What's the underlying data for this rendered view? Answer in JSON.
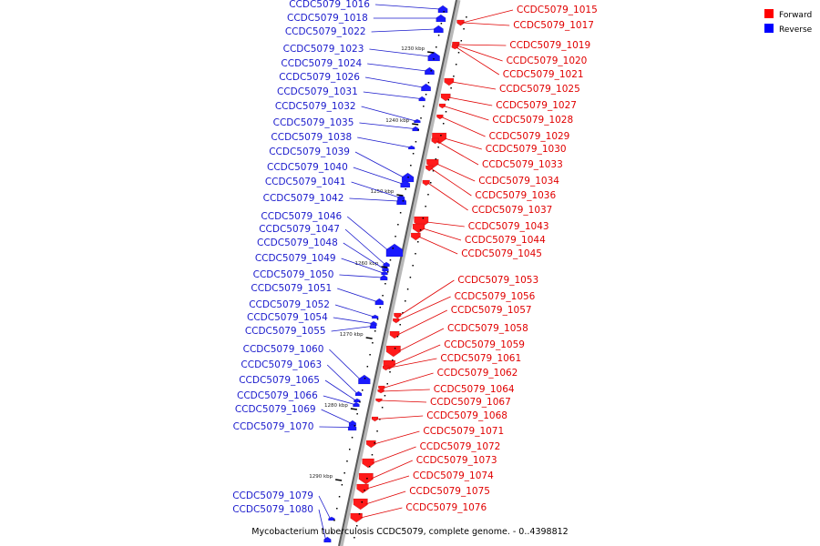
{
  "caption": "Mycobacterium tuberculosis CCDC5079, complete genome. - 0..4398812",
  "legend": [
    {
      "label": "Forward",
      "color": "#ff0000"
    },
    {
      "label": "Reverse",
      "color": "#0000ff"
    }
  ],
  "ticks": [
    "1230 kbp",
    "1240 kbp",
    "1250 kbp",
    "1260 kbp",
    "1270 kbp",
    "1280 kbp",
    "1290 kbp"
  ],
  "genes": {
    "reverse": [
      "CCDC5079_1016",
      "CCDC5079_1018",
      "CCDC5079_1022",
      "CCDC5079_1023",
      "CCDC5079_1024",
      "CCDC5079_1026",
      "CCDC5079_1031",
      "CCDC5079_1032",
      "CCDC5079_1035",
      "CCDC5079_1038",
      "CCDC5079_1039",
      "CCDC5079_1040",
      "CCDC5079_1041",
      "CCDC5079_1042",
      "CCDC5079_1046",
      "CCDC5079_1047",
      "CCDC5079_1048",
      "CCDC5079_1049",
      "CCDC5079_1050",
      "CCDC5079_1051",
      "CCDC5079_1052",
      "CCDC5079_1054",
      "CCDC5079_1055",
      "CCDC5079_1060",
      "CCDC5079_1063",
      "CCDC5079_1065",
      "CCDC5079_1066",
      "CCDC5079_1069",
      "CCDC5079_1070",
      "CCDC5079_1079",
      "CCDC5079_1080"
    ],
    "forward": [
      "CCDC5079_1015",
      "CCDC5079_1017",
      "CCDC5079_1019",
      "CCDC5079_1020",
      "CCDC5079_1021",
      "CCDC5079_1025",
      "CCDC5079_1027",
      "CCDC5079_1028",
      "CCDC5079_1029",
      "CCDC5079_1030",
      "CCDC5079_1033",
      "CCDC5079_1034",
      "CCDC5079_1036",
      "CCDC5079_1037",
      "CCDC5079_1043",
      "CCDC5079_1044",
      "CCDC5079_1045",
      "CCDC5079_1053",
      "CCDC5079_1056",
      "CCDC5079_1057",
      "CCDC5079_1058",
      "CCDC5079_1059",
      "CCDC5079_1061",
      "CCDC5079_1062",
      "CCDC5079_1064",
      "CCDC5079_1067",
      "CCDC5079_1068",
      "CCDC5079_1071",
      "CCDC5079_1072",
      "CCDC5079_1073",
      "CCDC5079_1074",
      "CCDC5079_1075",
      "CCDC5079_1076"
    ]
  }
}
